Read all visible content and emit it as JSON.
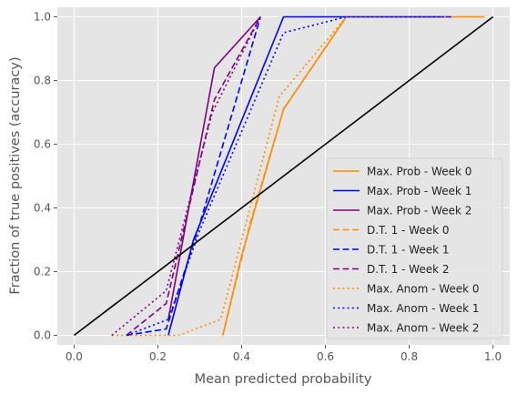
{
  "chart_data": {
    "type": "line",
    "title": "",
    "xlabel": "Mean predicted probability",
    "ylabel": "Fraction of true positives (accuracy)",
    "xlim": [
      -0.04,
      1.04
    ],
    "ylim": [
      -0.03,
      1.03
    ],
    "xticks": [
      0.0,
      0.2,
      0.4,
      0.6,
      0.8,
      1.0
    ],
    "xtick_labels": [
      "0.0",
      "0.2",
      "0.4",
      "0.6",
      "0.8",
      "1.0"
    ],
    "yticks": [
      0.0,
      0.2,
      0.4,
      0.6,
      0.8,
      1.0
    ],
    "ytick_labels": [
      "0.0",
      "0.2",
      "0.4",
      "0.6",
      "0.8",
      "1.0"
    ],
    "grid": true,
    "style": "ggplot",
    "legend_position": "lower-right",
    "reference_line": {
      "x": [
        0,
        1
      ],
      "y": [
        0,
        1
      ],
      "color": "#000000"
    },
    "series": [
      {
        "name": "Max. Prob - Week 0",
        "color": "#ff8c00",
        "dash": "solid",
        "x": [
          0.355,
          0.4,
          0.5,
          0.65,
          0.98
        ],
        "y": [
          0.0,
          0.25,
          0.71,
          1.0,
          1.0
        ]
      },
      {
        "name": "Max. Prob - Week 1",
        "color": "#0000ff",
        "dash": "solid",
        "x": [
          0.225,
          0.285,
          0.5,
          0.9
        ],
        "y": [
          0.0,
          0.3,
          1.0,
          1.0
        ]
      },
      {
        "name": "Max. Prob - Week 2",
        "color": "#800080",
        "dash": "solid",
        "x": [
          0.225,
          0.335,
          0.445
        ],
        "y": [
          0.05,
          0.84,
          1.0
        ]
      },
      {
        "name": "D.T. 1 - Week 0",
        "color": "#ff8c00",
        "dash": "dashed",
        "x": [
          0.355,
          0.42,
          0.5,
          0.65
        ],
        "y": [
          0.0,
          0.35,
          0.71,
          1.0
        ]
      },
      {
        "name": "D.T. 1 - Week 1",
        "color": "#0000ff",
        "dash": "dashed",
        "x": [
          0.125,
          0.22,
          0.3,
          0.445
        ],
        "y": [
          0.0,
          0.02,
          0.35,
          1.0
        ]
      },
      {
        "name": "D.T. 1 - Week 2",
        "color": "#800080",
        "dash": "dashed",
        "x": [
          0.125,
          0.22,
          0.335,
          0.445
        ],
        "y": [
          0.0,
          0.1,
          0.74,
          1.0
        ]
      },
      {
        "name": "Max. Anom - Week 0",
        "color": "#ff8c00",
        "dash": "dotted",
        "x": [
          0.09,
          0.25,
          0.35,
          0.49,
          0.65,
          0.89
        ],
        "y": [
          0.0,
          0.0,
          0.05,
          0.75,
          1.0,
          1.0
        ]
      },
      {
        "name": "Max. Anom - Week 1",
        "color": "#0000ff",
        "dash": "dotted",
        "x": [
          0.125,
          0.225,
          0.3,
          0.5,
          0.65,
          0.88
        ],
        "y": [
          0.0,
          0.05,
          0.33,
          0.95,
          1.0,
          1.0
        ]
      },
      {
        "name": "Max. Anom - Week 2",
        "color": "#800080",
        "dash": "dotted",
        "x": [
          0.09,
          0.22,
          0.33,
          0.445
        ],
        "y": [
          0.0,
          0.14,
          0.7,
          1.0
        ]
      }
    ]
  }
}
